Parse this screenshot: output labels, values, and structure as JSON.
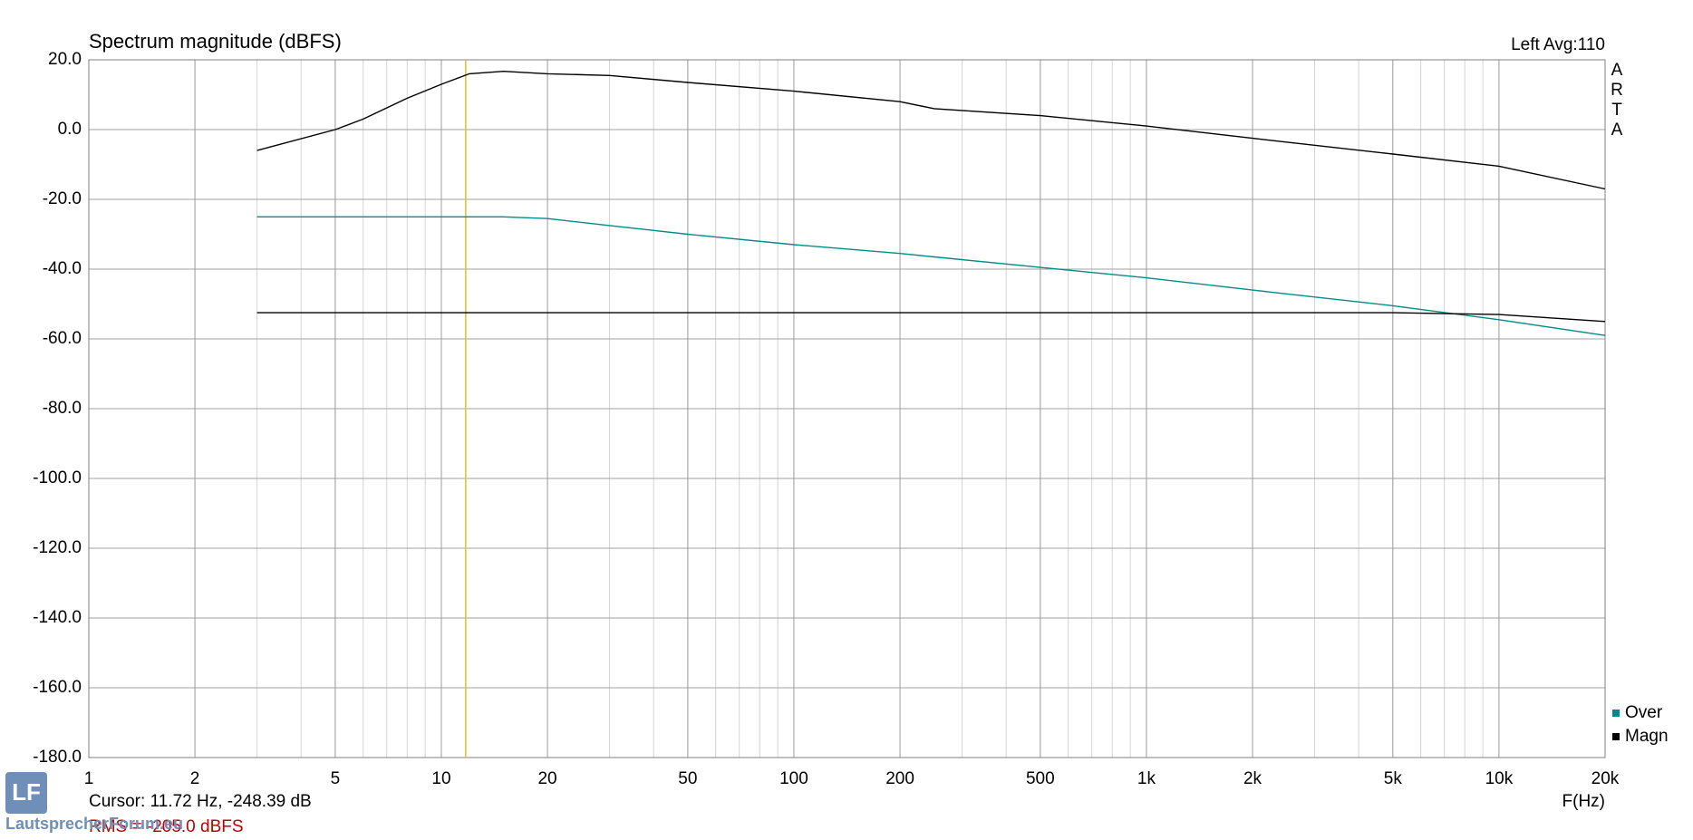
{
  "chart_data": {
    "type": "line",
    "title": "Spectrum magnitude (dBFS)",
    "channel_info": "Left  Avg:110",
    "brand": [
      "A",
      "R",
      "T",
      "A"
    ],
    "x_label": "F(Hz)",
    "log_x": true,
    "grid": true,
    "cursor": {
      "x": 11.72,
      "label": "Cursor: 11.72 Hz, -248.39 dB",
      "color": "#e0c030"
    },
    "rms_label": "RMS = -205.0 dBFS",
    "watermark": "LautsprecherForum.eu",
    "xlim": [
      1,
      20000
    ],
    "xticks": [
      1,
      2,
      5,
      10,
      20,
      50,
      100,
      200,
      500,
      {
        "value": 1000,
        "label": "1k"
      },
      {
        "value": 2000,
        "label": "2k"
      },
      {
        "value": 5000,
        "label": "5k"
      },
      {
        "value": 10000,
        "label": "10k"
      },
      {
        "value": 20000,
        "label": "20k"
      }
    ],
    "ylim": [
      -180,
      20
    ],
    "yticks": [
      {
        "value": 20,
        "label": "20.0"
      },
      {
        "value": 0,
        "label": "0.0"
      },
      {
        "value": -20,
        "label": "-20.0"
      },
      {
        "value": -40,
        "label": "-40.0"
      },
      {
        "value": -60,
        "label": "-60.0"
      },
      {
        "value": -80,
        "label": "-80.0"
      },
      {
        "value": -100,
        "label": "-100.0"
      },
      {
        "value": -120,
        "label": "-120.0"
      },
      {
        "value": -140,
        "label": "-140.0"
      },
      {
        "value": -160,
        "label": "-160.0"
      },
      {
        "value": -180,
        "label": "-180.0"
      }
    ],
    "x": [
      3,
      5,
      6,
      8,
      10,
      12,
      15,
      20,
      30,
      50,
      100,
      200,
      250,
      500,
      1000,
      2000,
      5000,
      10000,
      20000
    ],
    "series": [
      {
        "name": "Magn",
        "color": "#000000",
        "values": [
          -6,
          0,
          3,
          9,
          13,
          16,
          16.7,
          16,
          15.5,
          13.5,
          11,
          8,
          6,
          4,
          1,
          -2.5,
          -7,
          -10.5,
          -17
        ]
      },
      {
        "name": "Over",
        "color": "#008b8b",
        "values": [
          -25,
          -25,
          -25,
          -25,
          -25,
          -25,
          -25,
          -25.5,
          -27.5,
          -30,
          -33,
          -35.5,
          -36.5,
          -39.5,
          -42.5,
          -46,
          -50.5,
          -54.5,
          -59
        ]
      },
      {
        "name": null,
        "color": "#000000",
        "values": [
          -52.5,
          -52.5,
          -52.5,
          -52.5,
          -52.5,
          -52.5,
          -52.5,
          -52.5,
          -52.5,
          -52.5,
          -52.5,
          -52.5,
          -52.5,
          -52.5,
          -52.5,
          -52.5,
          -52.5,
          -53,
          -55
        ]
      }
    ]
  }
}
